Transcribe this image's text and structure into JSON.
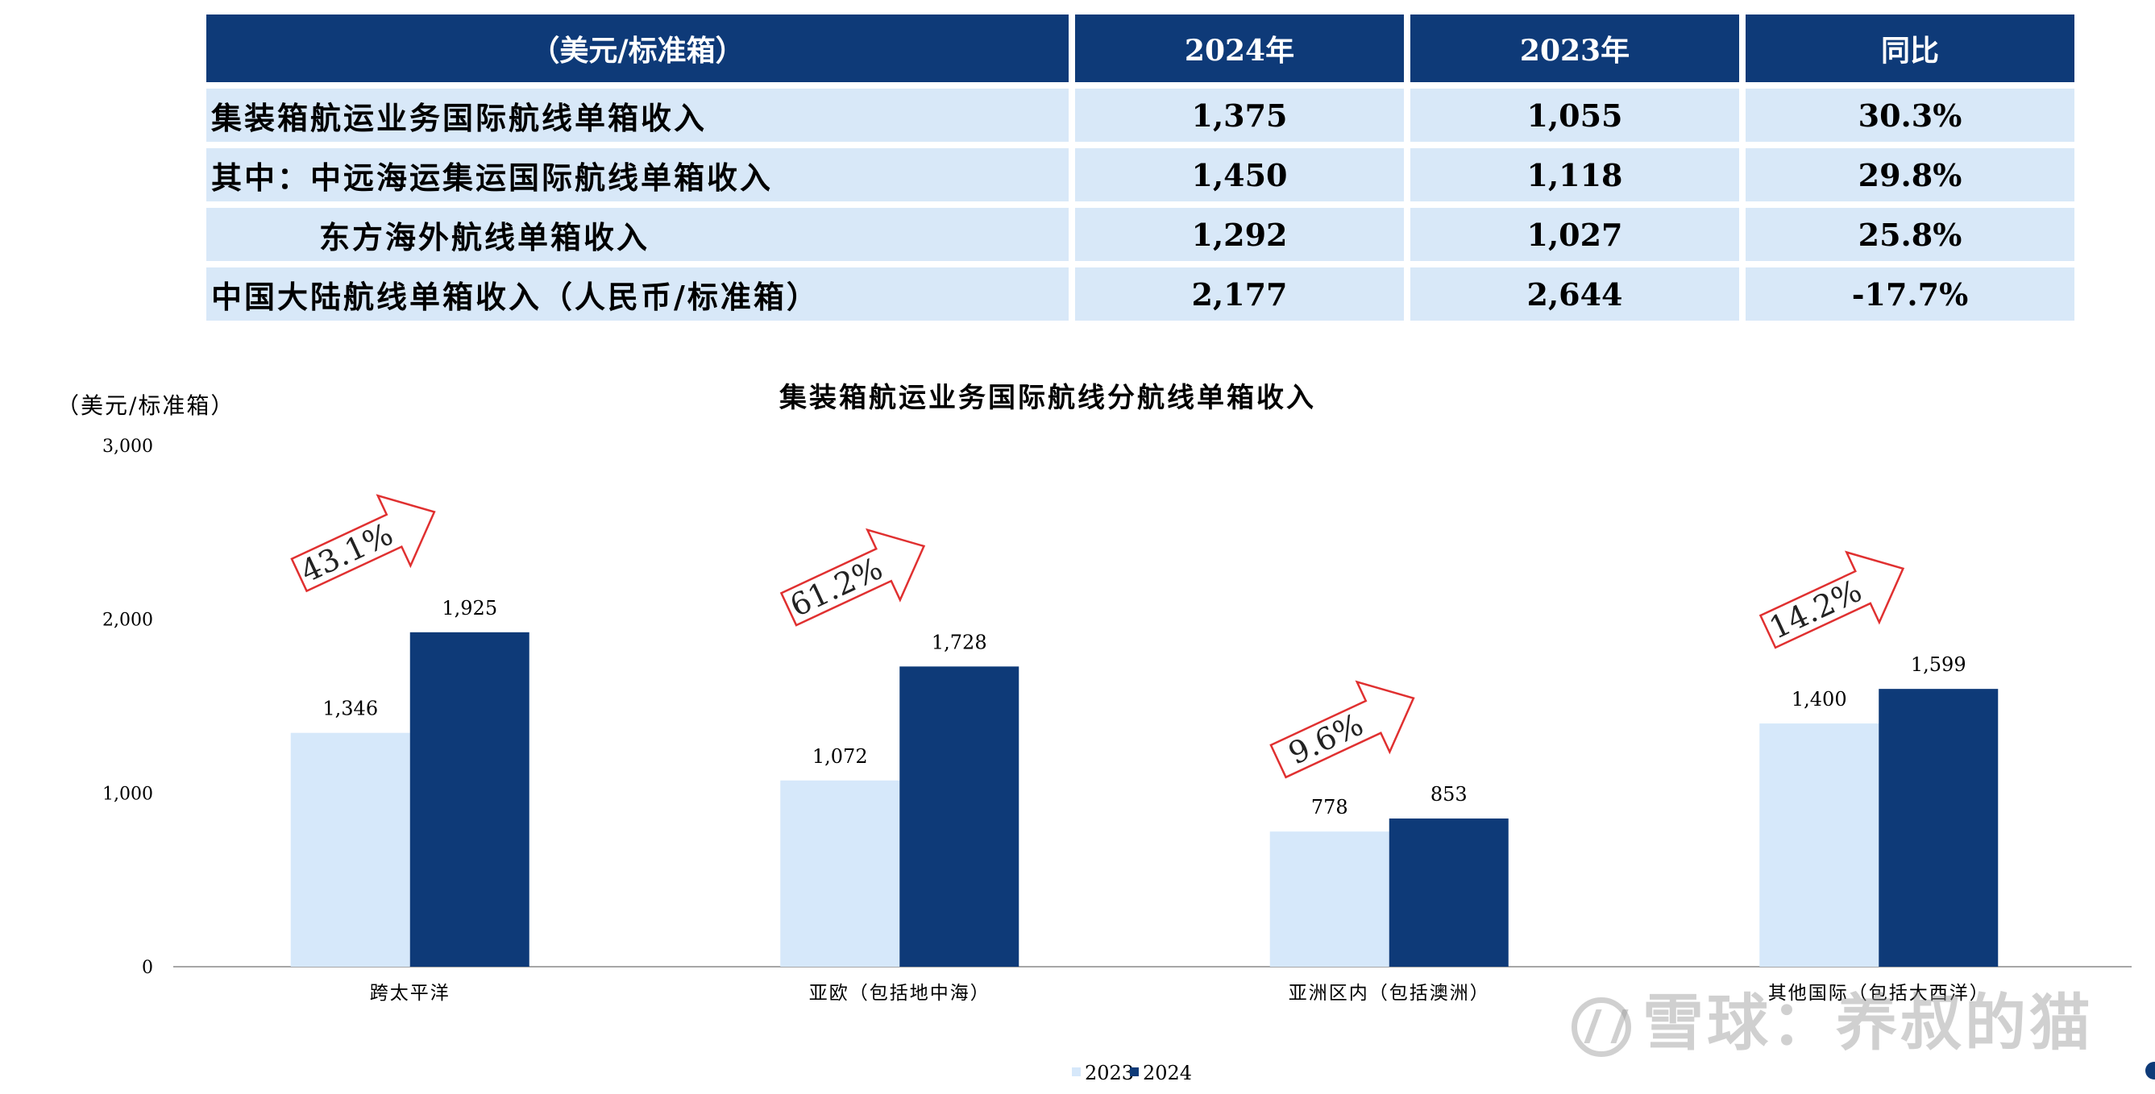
{
  "table": {
    "headers": [
      "（美元/标准箱）",
      "2024年",
      "2023年",
      "同比"
    ],
    "rows": [
      {
        "label": "集装箱航运业务国际航线单箱收入",
        "v2024": "1,375",
        "v2023": "1,055",
        "yoy": "30.3%"
      },
      {
        "label": "其中：中远海运集运国际航线单箱收入",
        "v2024": "1,450",
        "v2023": "1,118",
        "yoy": "29.8%"
      },
      {
        "label": "东方海外航线单箱收入",
        "v2024": "1,292",
        "v2023": "1,027",
        "yoy": "25.8%"
      },
      {
        "label": "中国大陆航线单箱收入（人民币/标准箱）",
        "v2024": "2,177",
        "v2023": "2,644",
        "yoy": "-17.7%"
      }
    ]
  },
  "chart_data": {
    "type": "bar",
    "title": "集装箱航运业务国际航线分航线单箱收入",
    "ylabel": "（美元/标准箱）",
    "xlabel": "",
    "ylim": [
      0,
      3000
    ],
    "yticks": [
      "0",
      "1,000",
      "2,000",
      "3,000"
    ],
    "categories": [
      "跨太平洋",
      "亚欧（包括地中海）",
      "亚洲区内（包括澳洲）",
      "其他国际（包括大西洋）"
    ],
    "series": [
      {
        "name": "2023",
        "color": "#d6e8fa",
        "values": [
          1346,
          1072,
          778,
          1400
        ],
        "labels": [
          "1,346",
          "1,072",
          "778",
          "1,400"
        ]
      },
      {
        "name": "2024",
        "color": "#0e3a78",
        "values": [
          1925,
          1728,
          853,
          1599
        ],
        "labels": [
          "1,925",
          "1,728",
          "853",
          "1,599"
        ]
      }
    ],
    "growth_annotations": [
      "43.1%",
      "61.2%",
      "9.6%",
      "14.2%"
    ],
    "arrow_color": "#e03030",
    "grid": false,
    "legend": "bottom-center"
  },
  "watermark": {
    "text": "雪球：养叔的猫"
  }
}
